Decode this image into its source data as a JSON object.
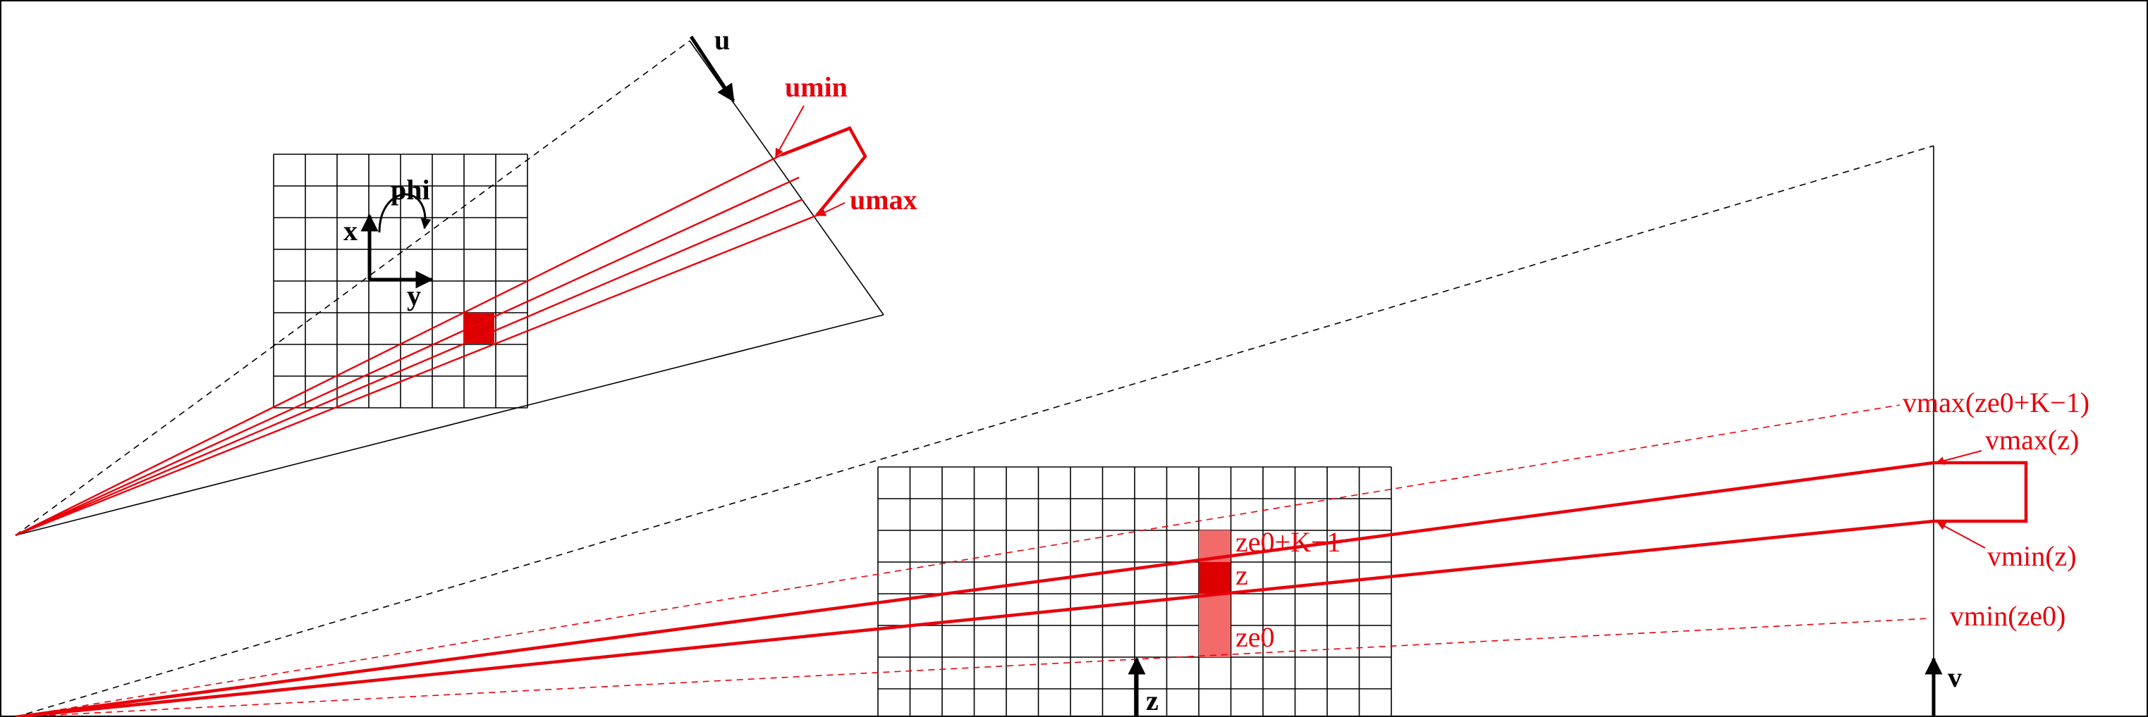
{
  "colors": {
    "line": "#000000",
    "ray": "#e8000b",
    "voxel": "#dd0000",
    "voxel_light": "#f26a6a"
  },
  "top_view": {
    "u_label": "u",
    "umin_label": "umin",
    "umax_label": "umax",
    "phi_label": "phi",
    "x_label": "x",
    "y_label": "y"
  },
  "bottom_view": {
    "z_label": "z",
    "v_label": "v",
    "ze0_k_label": "ze0+K−1",
    "z_cell_label": "z",
    "ze0_label": "ze0",
    "vmax_ze0_label": "vmax(ze0+K−1)",
    "vmax_z_label": "vmax(z)",
    "vmin_z_label": "vmin(z)",
    "vmin_ze0_label": "vmin(ze0)"
  }
}
